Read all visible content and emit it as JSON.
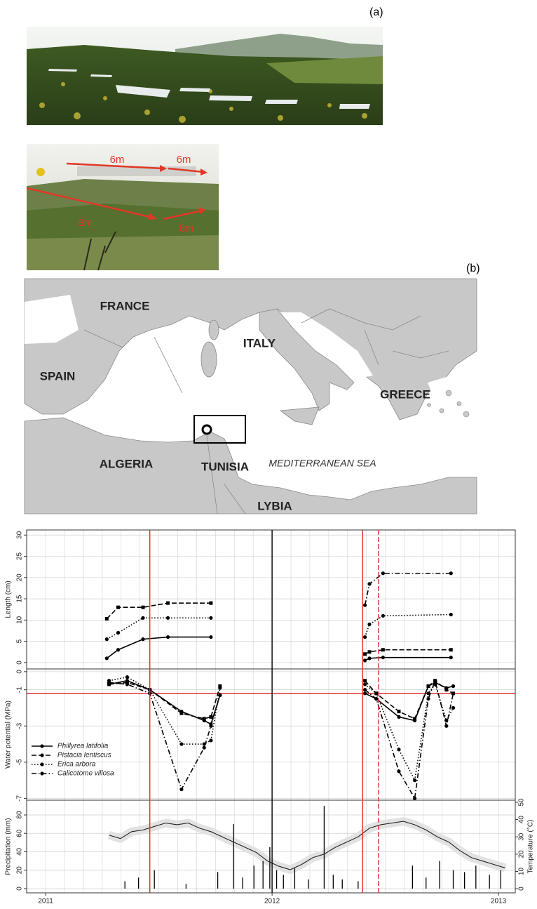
{
  "labels": {
    "a": "(a)",
    "b": "(b)"
  },
  "photo": {
    "arrows": [
      "6m",
      "6m",
      "8m",
      "8m"
    ]
  },
  "map": {
    "labels": [
      "FRANCE",
      "ITALY",
      "SPAIN",
      "GREECE",
      "ALGERIA",
      "TUNISIA",
      "MEDITERRANEAN SEA",
      "LYBIA"
    ]
  },
  "chart_data": {
    "type": "line",
    "xlim": [
      2010.916,
      2013.074
    ],
    "xticks": [
      2011,
      2012,
      2013
    ],
    "vlines": [
      {
        "value": 2011.46,
        "color": "#e03030",
        "dash": "solid"
      },
      {
        "value": 2012.0,
        "color": "#000000",
        "dash": "solid"
      },
      {
        "value": 2012.4,
        "color": "#e03030",
        "dash": "solid"
      },
      {
        "value": 2012.47,
        "color": "#e03030",
        "dash": "dashed"
      }
    ],
    "panels": [
      {
        "type": "line",
        "ylabel": "Length (cm)",
        "ylim": [
          -1.5,
          31.2
        ],
        "yticks": [
          0,
          5,
          10,
          15,
          20,
          25,
          30
        ],
        "grid": true,
        "x": [
          2011.27,
          2011.32,
          2011.43,
          2011.54,
          2011.73,
          2012.0,
          2012.41,
          2012.43,
          2012.49,
          2012.79
        ],
        "series": [
          {
            "color": "#000000",
            "dash": "solid",
            "marker": "circle",
            "values": [
              1,
              3,
              5.5,
              6,
              6,
              null,
              0.5,
              1,
              1.2,
              1.2
            ]
          },
          {
            "color": "#000000",
            "dash": "dashed",
            "marker": "square",
            "values": [
              10.3,
              13,
              13,
              14,
              14,
              null,
              2,
              2.5,
              3,
              3
            ]
          },
          {
            "color": "#000000",
            "dash": "dotted",
            "marker": "circle",
            "values": [
              5.5,
              7,
              10.5,
              10.5,
              10.5,
              null,
              6,
              9,
              11,
              11.3
            ]
          },
          {
            "color": "#000000",
            "dash": "dashdot",
            "marker": "circle",
            "values": [
              null,
              null,
              null,
              null,
              null,
              null,
              13.5,
              18.5,
              21,
              21
            ]
          }
        ]
      },
      {
        "type": "line",
        "ylabel": "Water potential (MPa)",
        "ylim": [
          -7.1,
          0.15
        ],
        "yticks": [
          0,
          -1,
          -3,
          -5,
          -7
        ],
        "grid": true,
        "hlines": [
          {
            "value": -1.2,
            "color": "#e03030"
          }
        ],
        "x": [
          2011.28,
          2011.36,
          2011.46,
          2011.6,
          2011.7,
          2011.73,
          2011.77,
          2012.0,
          2012.41,
          2012.46,
          2012.56,
          2012.63,
          2012.69,
          2012.72,
          2012.77,
          2012.8
        ],
        "series": [
          {
            "name": "Phillyrea latifolia",
            "color": "#000000",
            "dash": "solid",
            "marker": "circle",
            "values": [
              -0.7,
              -0.5,
              -1,
              -2.2,
              -2.7,
              -2.9,
              -1.3,
              null,
              -1.2,
              -1.5,
              -2.5,
              -2.7,
              -0.8,
              -0.6,
              -0.9,
              -0.8
            ]
          },
          {
            "name": "Pistacia lentiscus",
            "color": "#000000",
            "dash": "dashed",
            "marker": "square",
            "values": [
              -0.7,
              -0.6,
              -1,
              -2.3,
              -2.6,
              -2.5,
              -0.8,
              null,
              -0.5,
              -1.2,
              -2.2,
              -2.6,
              -0.8,
              -0.5,
              -1,
              -1.2
            ]
          },
          {
            "name": "Erica arbora",
            "color": "#000000",
            "dash": "dotted",
            "marker": "circle",
            "values": [
              -0.5,
              -0.3,
              -1,
              -4,
              -4,
              -3.8,
              -0.9,
              null,
              -0.7,
              -1.2,
              -4.3,
              -6,
              -1.2,
              -0.7,
              -2.7,
              -2
            ]
          },
          {
            "name": "Calicotome villosa",
            "color": "#000000",
            "dash": "dashdot",
            "marker": "circle",
            "values": [
              -0.6,
              -0.7,
              -1.2,
              -6.5,
              -4.2,
              -3,
              -1.3,
              null,
              -1,
              -1.5,
              -5.5,
              -7,
              -1.5,
              -0.5,
              -3,
              -1.2
            ]
          }
        ]
      },
      {
        "type": "combo",
        "ylabel": "Precipitation (mm)",
        "ylim": [
          -4.6,
          96
        ],
        "yticks": [
          0,
          20,
          40,
          60,
          80
        ],
        "grid": true,
        "y2label": "Temperature (°C)",
        "y2lim": [
          -2.4,
          51.2
        ],
        "y2ticks": [
          0,
          10,
          20,
          30,
          40,
          50
        ],
        "precipitation": {
          "color": "#000000",
          "x": [
            2011.35,
            2011.41,
            2011.48,
            2011.62,
            2011.76,
            2011.83,
            2011.87,
            2011.92,
            2011.96,
            2011.99,
            2012.02,
            2012.05,
            2012.1,
            2012.16,
            2012.23,
            2012.27,
            2012.31,
            2012.38,
            2012.62,
            2012.68,
            2012.74,
            2012.8,
            2012.85,
            2012.9,
            2012.96,
            2013.01
          ],
          "values": [
            8,
            12,
            20,
            5,
            18,
            70,
            12,
            25,
            30,
            45,
            20,
            15,
            22,
            10,
            90,
            15,
            10,
            8,
            25,
            12,
            30,
            20,
            18,
            25,
            15,
            20
          ]
        },
        "temperature": {
          "color": "#222222",
          "axis": "y2",
          "x": [
            2011.28,
            2011.33,
            2011.38,
            2011.43,
            2011.48,
            2011.53,
            2011.58,
            2011.63,
            2011.68,
            2011.73,
            2011.78,
            2011.83,
            2011.88,
            2011.93,
            2011.98,
            2012.03,
            2012.08,
            2012.13,
            2012.18,
            2012.23,
            2012.28,
            2012.33,
            2012.38,
            2012.43,
            2012.48,
            2012.53,
            2012.58,
            2012.63,
            2012.68,
            2012.73,
            2012.78,
            2012.83,
            2012.88,
            2012.93,
            2012.98,
            2013.03
          ],
          "values": [
            31,
            29,
            33,
            34,
            36,
            38,
            37,
            38,
            35,
            33,
            30,
            27,
            24,
            21,
            16,
            13,
            11,
            14,
            18,
            20,
            24,
            27,
            30,
            35,
            37,
            38,
            39,
            37,
            34,
            30,
            27,
            22,
            18,
            16,
            14,
            12
          ]
        }
      }
    ]
  }
}
